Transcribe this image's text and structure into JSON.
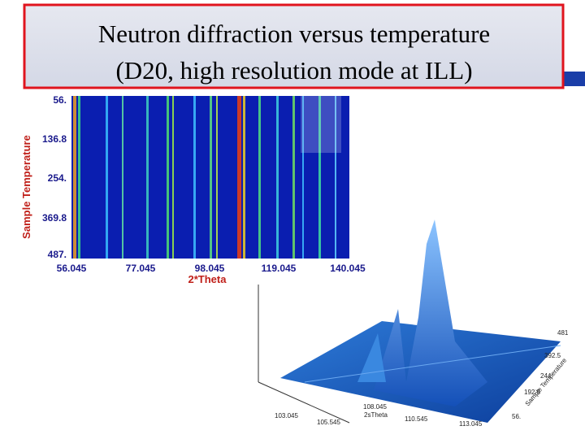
{
  "header": {
    "title_lines": [
      "Neutron diffraction versus temperature",
      "(D20, high resolution mode at ILL)"
    ]
  },
  "heatmap": {
    "y_label": "Sample Temperature",
    "x_label": "2*Theta",
    "y_ticks": [
      "56.",
      "136.8",
      "254.",
      "369.8",
      "487."
    ],
    "x_ticks": [
      "56.045",
      "77.045",
      "98.045",
      "119.045",
      "140.045"
    ]
  },
  "surface_plot": {
    "x_label": "2sTheta",
    "y_label": "Sample Temperature",
    "x_ticks": [
      "103.045",
      "105.545",
      "108.045",
      "110.545",
      "113.045"
    ],
    "y_ticks": [
      "56.",
      "192.5",
      "244",
      "392.5",
      "481"
    ]
  }
}
